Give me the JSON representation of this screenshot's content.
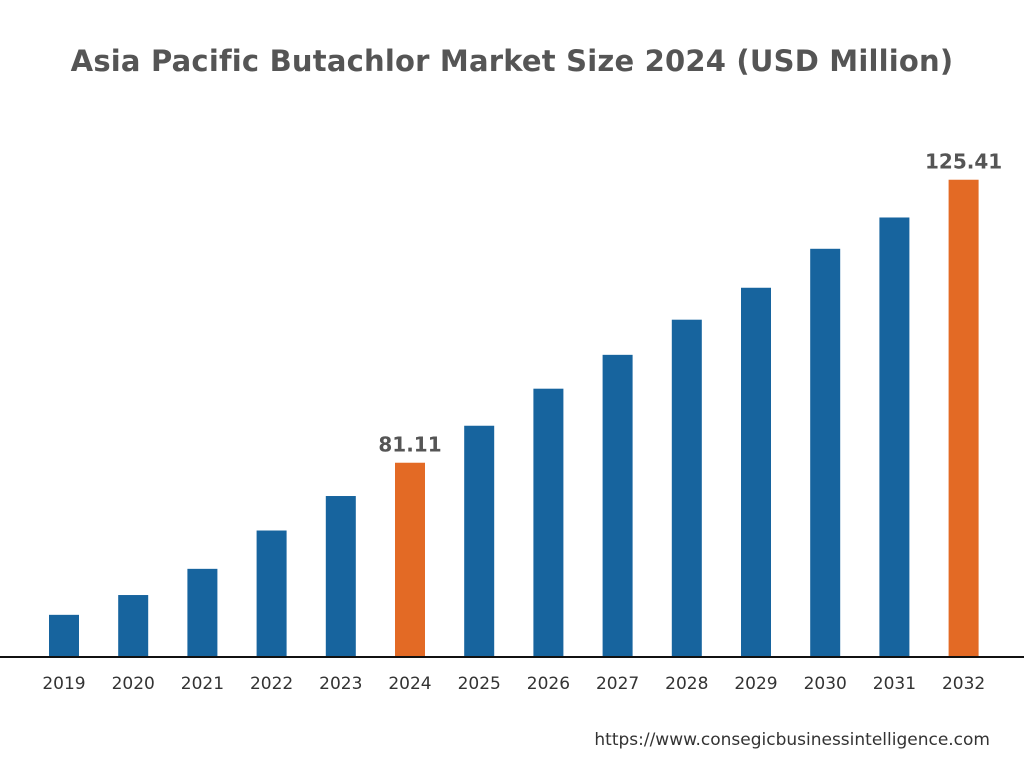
{
  "chart_data": {
    "type": "bar",
    "title": "Asia Pacific Butachlor Market Size 2024 (USD Million)",
    "xlabel": "",
    "ylabel": "",
    "categories": [
      "2019",
      "2020",
      "2021",
      "2022",
      "2023",
      "2024",
      "2025",
      "2026",
      "2027",
      "2028",
      "2029",
      "2030",
      "2031",
      "2032"
    ],
    "values": [
      57.3,
      60.4,
      64.5,
      70.5,
      75.9,
      81.11,
      86.9,
      92.7,
      98.0,
      103.5,
      108.5,
      114.6,
      119.5,
      125.41
    ],
    "data_labels": {
      "2024": "81.11",
      "2032": "125.41"
    },
    "highlight": [
      "2024",
      "2032"
    ],
    "ylim": [
      50.7,
      135
    ],
    "grid": false,
    "colors": {
      "default": "#17649e",
      "highlight": "#e36a25",
      "axis": "#111111",
      "text": "#555555"
    }
  },
  "footer": {
    "source": "https://www.consegicbusinessintelligence.com"
  }
}
